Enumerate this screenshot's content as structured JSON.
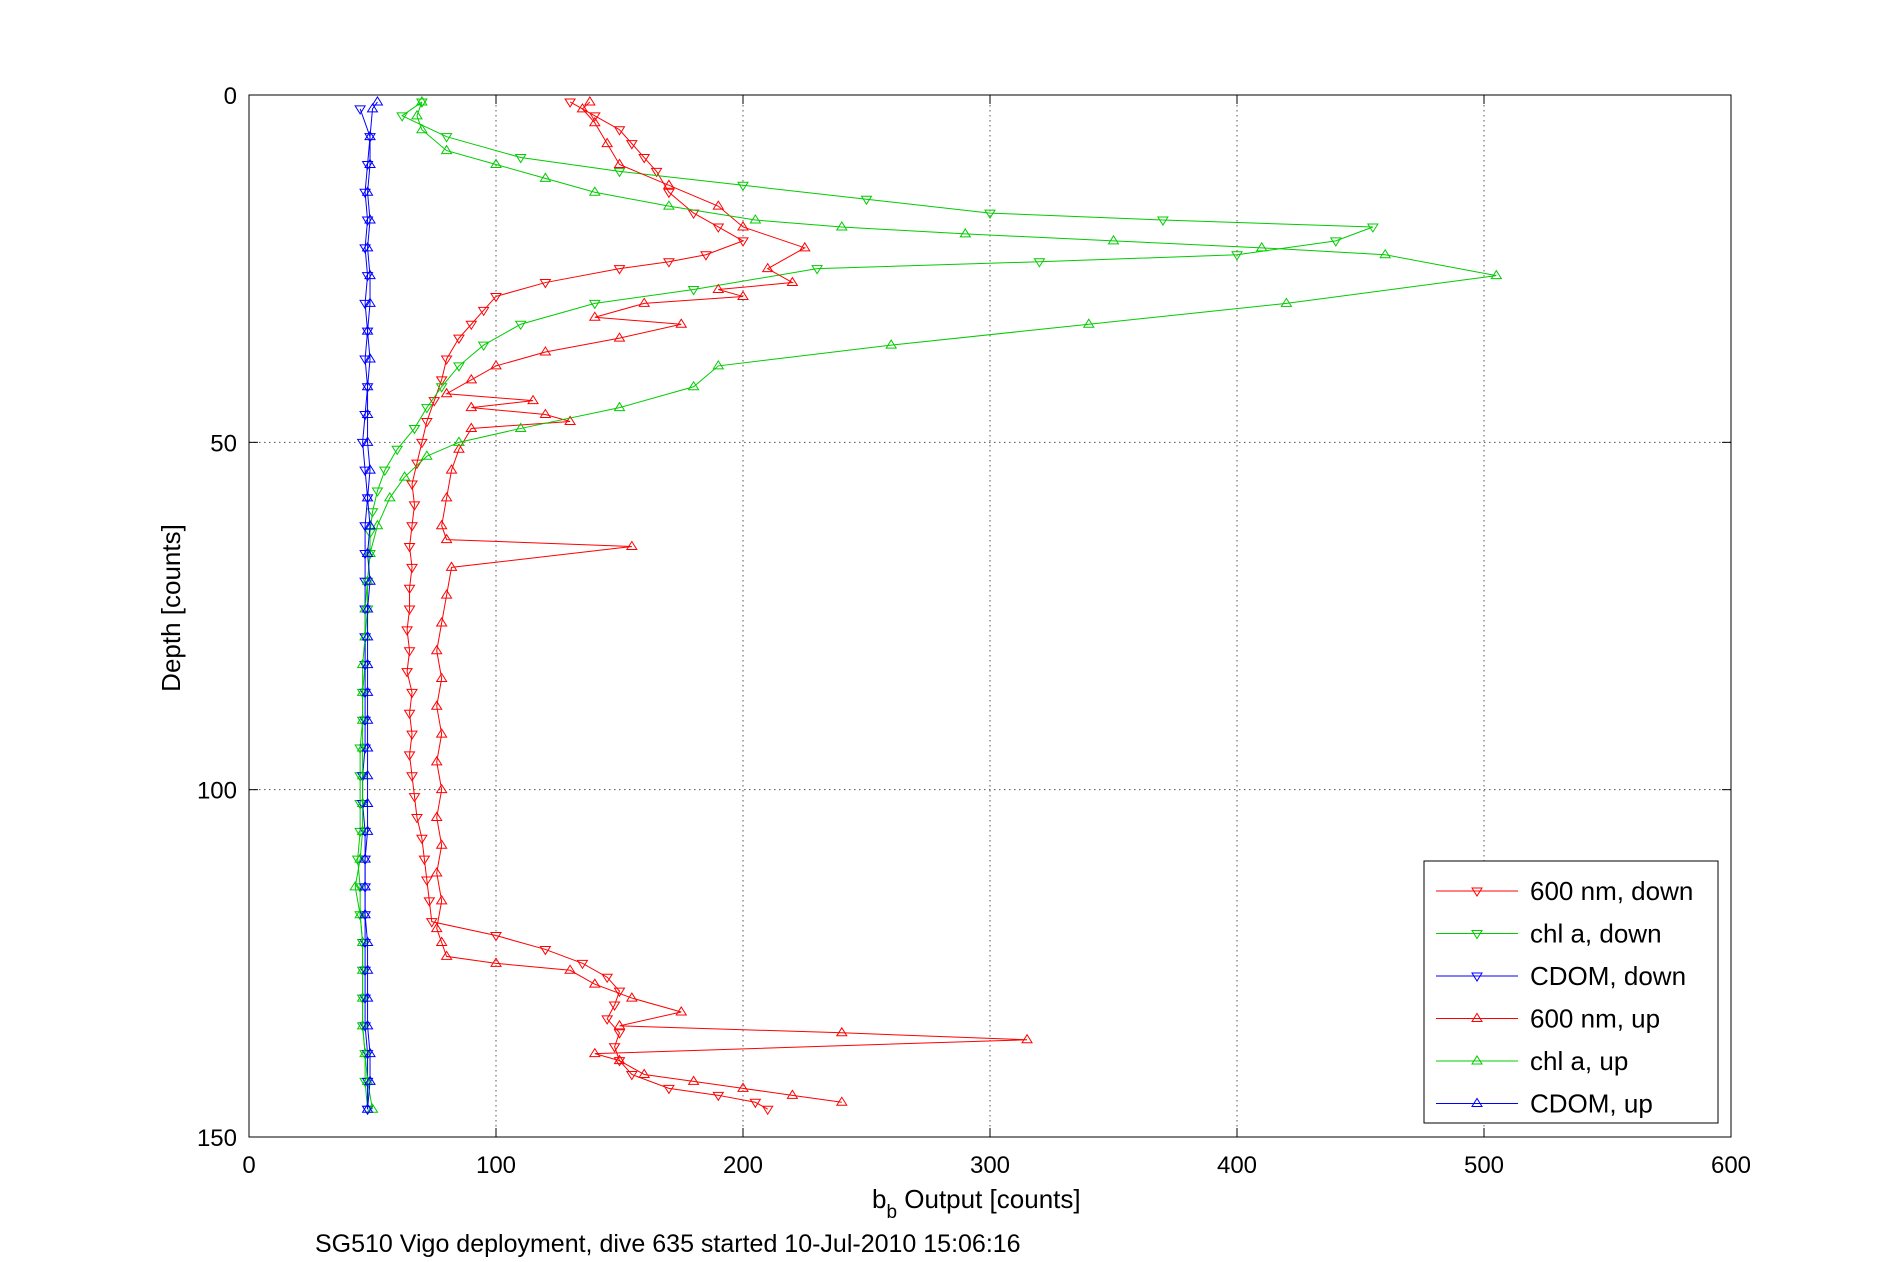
{
  "chart_data": {
    "type": "line",
    "xlabel_main": "b",
    "xlabel_sub": "b",
    "xlabel_rest": " Output [counts]",
    "ylabel": "Depth [counts]",
    "caption": "SG510 Vigo deployment, dive 635 started 10-Jul-2010 15:06:16",
    "xlim": [
      0,
      600
    ],
    "ylim": [
      0,
      150
    ],
    "y_reversed": true,
    "grid": true,
    "x_ticks": [
      "0",
      "100",
      "200",
      "300",
      "400",
      "500",
      "600"
    ],
    "y_ticks": [
      "0",
      "50",
      "100",
      "150"
    ],
    "legend_position": "bottom-right",
    "series": [
      {
        "name": "600 nm, down",
        "color": "#ff0000",
        "marker": "triangle-down",
        "points": [
          [
            130,
            1
          ],
          [
            140,
            3
          ],
          [
            150,
            5
          ],
          [
            155,
            7
          ],
          [
            160,
            9
          ],
          [
            165,
            11
          ],
          [
            170,
            14
          ],
          [
            180,
            17
          ],
          [
            190,
            19
          ],
          [
            200,
            21
          ],
          [
            185,
            23
          ],
          [
            170,
            24
          ],
          [
            150,
            25
          ],
          [
            120,
            27
          ],
          [
            100,
            29
          ],
          [
            95,
            31
          ],
          [
            90,
            33
          ],
          [
            85,
            35
          ],
          [
            80,
            38
          ],
          [
            78,
            41
          ],
          [
            75,
            44
          ],
          [
            72,
            47
          ],
          [
            70,
            50
          ],
          [
            68,
            53
          ],
          [
            66,
            56
          ],
          [
            67,
            59
          ],
          [
            66,
            62
          ],
          [
            65,
            65
          ],
          [
            66,
            68
          ],
          [
            65,
            71
          ],
          [
            65,
            74
          ],
          [
            64,
            77
          ],
          [
            65,
            80
          ],
          [
            64,
            83
          ],
          [
            66,
            86
          ],
          [
            65,
            89
          ],
          [
            66,
            92
          ],
          [
            65,
            95
          ],
          [
            66,
            98
          ],
          [
            67,
            101
          ],
          [
            68,
            104
          ],
          [
            70,
            107
          ],
          [
            71,
            110
          ],
          [
            72,
            113
          ],
          [
            73,
            116
          ],
          [
            74,
            119
          ],
          [
            100,
            121
          ],
          [
            120,
            123
          ],
          [
            135,
            125
          ],
          [
            145,
            127
          ],
          [
            150,
            129
          ],
          [
            148,
            131
          ],
          [
            145,
            133
          ],
          [
            150,
            135
          ],
          [
            148,
            137
          ],
          [
            150,
            139
          ],
          [
            155,
            141
          ],
          [
            170,
            143
          ],
          [
            190,
            144
          ],
          [
            205,
            145
          ],
          [
            210,
            146
          ]
        ]
      },
      {
        "name": "chl a, down",
        "color": "#00cc00",
        "marker": "triangle-down",
        "points": [
          [
            70,
            1
          ],
          [
            62,
            3
          ],
          [
            80,
            6
          ],
          [
            110,
            9
          ],
          [
            150,
            11
          ],
          [
            200,
            13
          ],
          [
            250,
            15
          ],
          [
            300,
            17
          ],
          [
            370,
            18
          ],
          [
            455,
            19
          ],
          [
            440,
            21
          ],
          [
            400,
            23
          ],
          [
            320,
            24
          ],
          [
            230,
            25
          ],
          [
            180,
            28
          ],
          [
            140,
            30
          ],
          [
            110,
            33
          ],
          [
            95,
            36
          ],
          [
            85,
            39
          ],
          [
            78,
            42
          ],
          [
            72,
            45
          ],
          [
            67,
            48
          ],
          [
            60,
            51
          ],
          [
            55,
            54
          ],
          [
            52,
            57
          ],
          [
            50,
            60
          ],
          [
            49,
            63
          ],
          [
            49,
            66
          ],
          [
            48,
            70
          ],
          [
            48,
            74
          ],
          [
            47,
            78
          ],
          [
            47,
            82
          ],
          [
            46,
            86
          ],
          [
            46,
            90
          ],
          [
            45,
            94
          ],
          [
            45,
            98
          ],
          [
            45,
            102
          ],
          [
            45,
            106
          ],
          [
            44,
            110
          ],
          [
            45,
            114
          ],
          [
            45,
            118
          ],
          [
            46,
            122
          ],
          [
            46,
            126
          ],
          [
            46,
            130
          ],
          [
            46,
            134
          ],
          [
            47,
            138
          ],
          [
            47,
            142
          ],
          [
            48,
            146
          ]
        ]
      },
      {
        "name": "CDOM, down",
        "color": "#0000ff",
        "marker": "triangle-down",
        "points": [
          [
            45,
            2
          ],
          [
            49,
            6
          ],
          [
            48,
            10
          ],
          [
            47,
            14
          ],
          [
            48,
            18
          ],
          [
            47,
            22
          ],
          [
            48,
            26
          ],
          [
            47,
            30
          ],
          [
            48,
            34
          ],
          [
            47,
            38
          ],
          [
            48,
            42
          ],
          [
            47,
            46
          ],
          [
            46,
            50
          ],
          [
            47,
            54
          ],
          [
            48,
            58
          ],
          [
            47,
            62
          ],
          [
            47,
            66
          ],
          [
            47,
            70
          ],
          [
            47,
            74
          ],
          [
            47,
            78
          ],
          [
            47,
            82
          ],
          [
            47,
            86
          ],
          [
            47,
            90
          ],
          [
            47,
            94
          ],
          [
            46,
            98
          ],
          [
            46,
            102
          ],
          [
            47,
            106
          ],
          [
            47,
            110
          ],
          [
            47,
            114
          ],
          [
            47,
            118
          ],
          [
            47,
            122
          ],
          [
            47,
            126
          ],
          [
            47,
            130
          ],
          [
            47,
            134
          ],
          [
            48,
            138
          ],
          [
            48,
            142
          ],
          [
            48,
            146
          ]
        ]
      },
      {
        "name": "600 nm, up",
        "color": "#ff0000",
        "marker": "triangle-up",
        "points": [
          [
            240,
            145
          ],
          [
            220,
            144
          ],
          [
            200,
            143
          ],
          [
            180,
            142
          ],
          [
            160,
            141
          ],
          [
            150,
            139
          ],
          [
            140,
            138
          ],
          [
            315,
            136
          ],
          [
            240,
            135
          ],
          [
            150,
            134
          ],
          [
            175,
            132
          ],
          [
            155,
            130
          ],
          [
            140,
            128
          ],
          [
            130,
            126
          ],
          [
            100,
            125
          ],
          [
            80,
            124
          ],
          [
            78,
            122
          ],
          [
            76,
            120
          ],
          [
            78,
            116
          ],
          [
            76,
            112
          ],
          [
            78,
            108
          ],
          [
            76,
            104
          ],
          [
            78,
            100
          ],
          [
            76,
            96
          ],
          [
            78,
            92
          ],
          [
            76,
            88
          ],
          [
            78,
            84
          ],
          [
            76,
            80
          ],
          [
            78,
            76
          ],
          [
            80,
            72
          ],
          [
            82,
            68
          ],
          [
            155,
            65
          ],
          [
            80,
            64
          ],
          [
            78,
            62
          ],
          [
            80,
            58
          ],
          [
            82,
            54
          ],
          [
            85,
            51
          ],
          [
            90,
            48
          ],
          [
            130,
            47
          ],
          [
            120,
            46
          ],
          [
            90,
            45
          ],
          [
            115,
            44
          ],
          [
            80,
            43
          ],
          [
            90,
            41
          ],
          [
            100,
            39
          ],
          [
            120,
            37
          ],
          [
            150,
            35
          ],
          [
            175,
            33
          ],
          [
            140,
            32
          ],
          [
            160,
            30
          ],
          [
            200,
            29
          ],
          [
            190,
            28
          ],
          [
            220,
            27
          ],
          [
            210,
            25
          ],
          [
            225,
            22
          ],
          [
            200,
            19
          ],
          [
            190,
            16
          ],
          [
            170,
            13
          ],
          [
            150,
            10
          ],
          [
            145,
            7
          ],
          [
            140,
            4
          ],
          [
            135,
            2
          ],
          [
            138,
            1
          ]
        ]
      },
      {
        "name": "chl a, up",
        "color": "#00cc00",
        "marker": "triangle-up",
        "points": [
          [
            50,
            146
          ],
          [
            48,
            142
          ],
          [
            47,
            138
          ],
          [
            46,
            134
          ],
          [
            46,
            130
          ],
          [
            46,
            126
          ],
          [
            46,
            122
          ],
          [
            45,
            118
          ],
          [
            43,
            114
          ],
          [
            45,
            110
          ],
          [
            46,
            106
          ],
          [
            46,
            102
          ],
          [
            46,
            98
          ],
          [
            46,
            94
          ],
          [
            46,
            90
          ],
          [
            46,
            86
          ],
          [
            46,
            82
          ],
          [
            47,
            78
          ],
          [
            47,
            74
          ],
          [
            48,
            70
          ],
          [
            49,
            66
          ],
          [
            52,
            62
          ],
          [
            57,
            58
          ],
          [
            63,
            55
          ],
          [
            72,
            52
          ],
          [
            85,
            50
          ],
          [
            110,
            48
          ],
          [
            150,
            45
          ],
          [
            180,
            42
          ],
          [
            190,
            39
          ],
          [
            260,
            36
          ],
          [
            340,
            33
          ],
          [
            420,
            30
          ],
          [
            505,
            26
          ],
          [
            460,
            23
          ],
          [
            410,
            22
          ],
          [
            350,
            21
          ],
          [
            290,
            20
          ],
          [
            240,
            19
          ],
          [
            205,
            18
          ],
          [
            170,
            16
          ],
          [
            140,
            14
          ],
          [
            120,
            12
          ],
          [
            100,
            10
          ],
          [
            80,
            8
          ],
          [
            70,
            5
          ],
          [
            68,
            3
          ],
          [
            70,
            1
          ]
        ]
      },
      {
        "name": "CDOM, up",
        "color": "#0000ff",
        "marker": "triangle-up",
        "points": [
          [
            48,
            146
          ],
          [
            49,
            142
          ],
          [
            49,
            138
          ],
          [
            48,
            134
          ],
          [
            48,
            130
          ],
          [
            48,
            126
          ],
          [
            48,
            122
          ],
          [
            47,
            118
          ],
          [
            47,
            114
          ],
          [
            47,
            110
          ],
          [
            48,
            106
          ],
          [
            48,
            102
          ],
          [
            48,
            98
          ],
          [
            48,
            94
          ],
          [
            48,
            90
          ],
          [
            48,
            86
          ],
          [
            48,
            82
          ],
          [
            48,
            78
          ],
          [
            48,
            74
          ],
          [
            49,
            70
          ],
          [
            48,
            66
          ],
          [
            49,
            62
          ],
          [
            48,
            58
          ],
          [
            49,
            54
          ],
          [
            48,
            50
          ],
          [
            48,
            46
          ],
          [
            48,
            42
          ],
          [
            49,
            38
          ],
          [
            48,
            34
          ],
          [
            49,
            30
          ],
          [
            49,
            26
          ],
          [
            48,
            22
          ],
          [
            49,
            18
          ],
          [
            48,
            14
          ],
          [
            49,
            10
          ],
          [
            49,
            6
          ],
          [
            50,
            2
          ],
          [
            52,
            1
          ]
        ]
      }
    ]
  }
}
